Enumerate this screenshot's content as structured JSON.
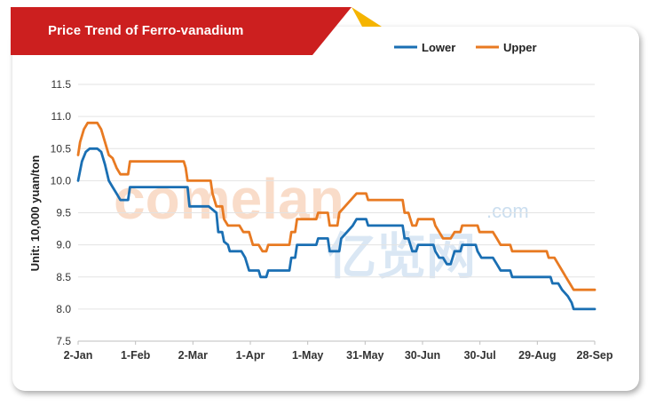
{
  "banner": {
    "color": "#cc1f1f",
    "accent": "#f5b400"
  },
  "chart_data": {
    "type": "line",
    "title": "Price Trend of Ferro-vanadium",
    "xlabel": "",
    "ylabel": "Unit: 10,000 yuan/ton",
    "ylim": [
      7.5,
      11.5
    ],
    "yticks": [
      "7.5",
      "8.0",
      "8.5",
      "9.0",
      "9.5",
      "10.0",
      "10.5",
      "11.0",
      "11.5"
    ],
    "xtick_labels": [
      "2-Jan",
      "1-Feb",
      "2-Mar",
      "1-Apr",
      "1-May",
      "31-May",
      "30-Jun",
      "30-Jul",
      "29-Aug",
      "28-Sep"
    ],
    "xlim": [
      0,
      269
    ],
    "grid": "horizontal",
    "legend": "top-right",
    "series": [
      {
        "name": "Lower",
        "color": "#1a6fb3",
        "points": [
          [
            0,
            10.0
          ],
          [
            2,
            10.3
          ],
          [
            4,
            10.45
          ],
          [
            6,
            10.5
          ],
          [
            10,
            10.5
          ],
          [
            12,
            10.45
          ],
          [
            14,
            10.25
          ],
          [
            16,
            10.0
          ],
          [
            18,
            9.9
          ],
          [
            20,
            9.8
          ],
          [
            22,
            9.7
          ],
          [
            26,
            9.7
          ],
          [
            27,
            9.9
          ],
          [
            57,
            9.9
          ],
          [
            58,
            9.6
          ],
          [
            68,
            9.6
          ],
          [
            72,
            9.5
          ],
          [
            73,
            9.2
          ],
          [
            75,
            9.2
          ],
          [
            76,
            9.05
          ],
          [
            78,
            9.0
          ],
          [
            79,
            8.9
          ],
          [
            85,
            8.9
          ],
          [
            87,
            8.8
          ],
          [
            89,
            8.6
          ],
          [
            94,
            8.6
          ],
          [
            95,
            8.5
          ],
          [
            98,
            8.5
          ],
          [
            99,
            8.6
          ],
          [
            110,
            8.6
          ],
          [
            111,
            8.8
          ],
          [
            113,
            8.8
          ],
          [
            114,
            9.0
          ],
          [
            124,
            9.0
          ],
          [
            125,
            9.1
          ],
          [
            130,
            9.1
          ],
          [
            131,
            8.9
          ],
          [
            136,
            8.9
          ],
          [
            137,
            9.1
          ],
          [
            140,
            9.2
          ],
          [
            143,
            9.3
          ],
          [
            145,
            9.4
          ],
          [
            150,
            9.4
          ],
          [
            151,
            9.3
          ],
          [
            169,
            9.3
          ],
          [
            170,
            9.1
          ],
          [
            172,
            9.1
          ],
          [
            174,
            8.9
          ],
          [
            176,
            8.9
          ],
          [
            177,
            9.0
          ],
          [
            185,
            9.0
          ],
          [
            186,
            8.9
          ],
          [
            188,
            8.8
          ],
          [
            190,
            8.8
          ],
          [
            192,
            8.7
          ],
          [
            194,
            8.7
          ],
          [
            196,
            8.9
          ],
          [
            199,
            8.9
          ],
          [
            200,
            9.0
          ],
          [
            207,
            9.0
          ],
          [
            208,
            8.9
          ],
          [
            210,
            8.8
          ],
          [
            216,
            8.8
          ],
          [
            218,
            8.7
          ],
          [
            220,
            8.6
          ],
          [
            225,
            8.6
          ],
          [
            226,
            8.5
          ],
          [
            246,
            8.5
          ],
          [
            247,
            8.4
          ],
          [
            250,
            8.4
          ],
          [
            252,
            8.3
          ],
          [
            255,
            8.2
          ],
          [
            257,
            8.1
          ],
          [
            258,
            8.0
          ],
          [
            269,
            8.0
          ]
        ]
      },
      {
        "name": "Upper",
        "color": "#e87a22",
        "points": [
          [
            0,
            10.4
          ],
          [
            1,
            10.6
          ],
          [
            3,
            10.8
          ],
          [
            5,
            10.9
          ],
          [
            10,
            10.9
          ],
          [
            12,
            10.8
          ],
          [
            14,
            10.6
          ],
          [
            16,
            10.4
          ],
          [
            18,
            10.35
          ],
          [
            20,
            10.2
          ],
          [
            22,
            10.1
          ],
          [
            26,
            10.1
          ],
          [
            27,
            10.3
          ],
          [
            55,
            10.3
          ],
          [
            56,
            10.2
          ],
          [
            57,
            10.0
          ],
          [
            69,
            10.0
          ],
          [
            70,
            9.8
          ],
          [
            72,
            9.6
          ],
          [
            75,
            9.6
          ],
          [
            76,
            9.4
          ],
          [
            78,
            9.3
          ],
          [
            80,
            9.3
          ],
          [
            84,
            9.3
          ],
          [
            86,
            9.2
          ],
          [
            89,
            9.2
          ],
          [
            91,
            9.0
          ],
          [
            94,
            9.0
          ],
          [
            96,
            8.9
          ],
          [
            98,
            8.9
          ],
          [
            99,
            9.0
          ],
          [
            110,
            9.0
          ],
          [
            111,
            9.2
          ],
          [
            113,
            9.2
          ],
          [
            114,
            9.4
          ],
          [
            124,
            9.4
          ],
          [
            125,
            9.5
          ],
          [
            130,
            9.5
          ],
          [
            131,
            9.3
          ],
          [
            135,
            9.3
          ],
          [
            136,
            9.5
          ],
          [
            139,
            9.6
          ],
          [
            142,
            9.7
          ],
          [
            145,
            9.8
          ],
          [
            150,
            9.8
          ],
          [
            151,
            9.7
          ],
          [
            169,
            9.7
          ],
          [
            170,
            9.5
          ],
          [
            172,
            9.5
          ],
          [
            174,
            9.3
          ],
          [
            176,
            9.3
          ],
          [
            177,
            9.4
          ],
          [
            185,
            9.4
          ],
          [
            186,
            9.3
          ],
          [
            188,
            9.2
          ],
          [
            190,
            9.1
          ],
          [
            194,
            9.1
          ],
          [
            196,
            9.2
          ],
          [
            199,
            9.2
          ],
          [
            200,
            9.3
          ],
          [
            208,
            9.3
          ],
          [
            209,
            9.2
          ],
          [
            216,
            9.2
          ],
          [
            218,
            9.1
          ],
          [
            220,
            9.0
          ],
          [
            225,
            9.0
          ],
          [
            226,
            8.9
          ],
          [
            244,
            8.9
          ],
          [
            245,
            8.8
          ],
          [
            248,
            8.8
          ],
          [
            250,
            8.7
          ],
          [
            252,
            8.6
          ],
          [
            254,
            8.5
          ],
          [
            256,
            8.4
          ],
          [
            258,
            8.3
          ],
          [
            269,
            8.3
          ]
        ]
      }
    ]
  },
  "watermark": {
    "text_latin": "comelan",
    "text_domain": ".com",
    "text_cn": "亿览网"
  }
}
